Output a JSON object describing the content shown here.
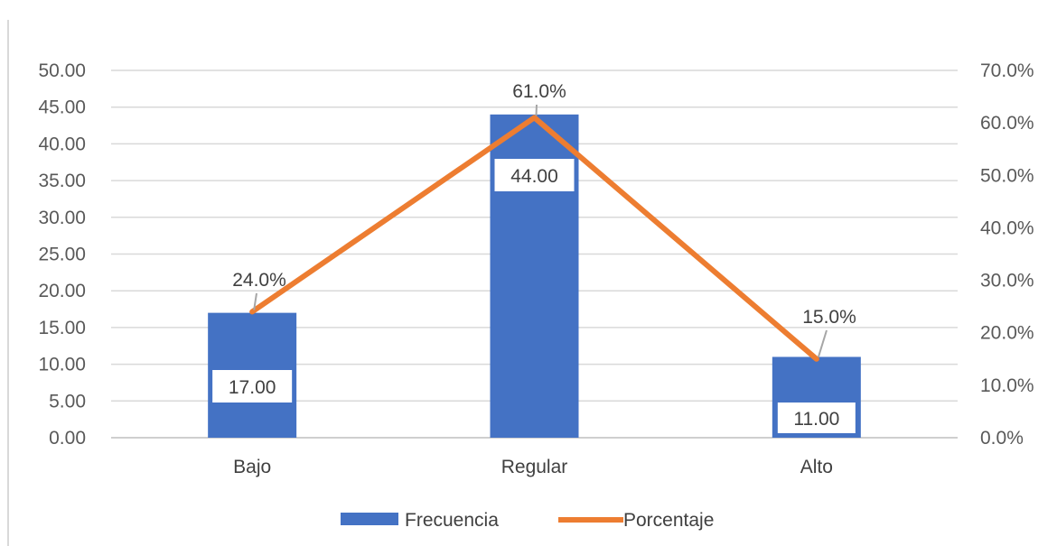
{
  "chart_data": {
    "type": "bar",
    "categories": [
      "Bajo",
      "Regular",
      "Alto"
    ],
    "series": [
      {
        "name": "Frecuencia",
        "type": "bar",
        "axis": "left",
        "values": [
          17,
          44,
          11
        ],
        "labels": [
          "17.00",
          "44.00",
          "11.00"
        ],
        "color": "#4472c4"
      },
      {
        "name": "Porcentaje",
        "type": "line",
        "axis": "right",
        "values": [
          24.0,
          61.0,
          15.0
        ],
        "labels": [
          "24.0%",
          "61.0%",
          "15.0%"
        ],
        "color": "#ed7d31"
      }
    ],
    "y_left": {
      "range": [
        0,
        50
      ],
      "ticks": [
        "0.00",
        "5.00",
        "10.00",
        "15.00",
        "20.00",
        "25.00",
        "30.00",
        "35.00",
        "40.00",
        "45.00",
        "50.00"
      ]
    },
    "y_right": {
      "range": [
        0,
        70
      ],
      "ticks": [
        "0.0%",
        "10.0%",
        "20.0%",
        "30.0%",
        "40.0%",
        "50.0%",
        "60.0%",
        "70.0%"
      ]
    },
    "grid": true,
    "legend": "bottom",
    "title": "",
    "xlabel": "",
    "ylabel": ""
  }
}
